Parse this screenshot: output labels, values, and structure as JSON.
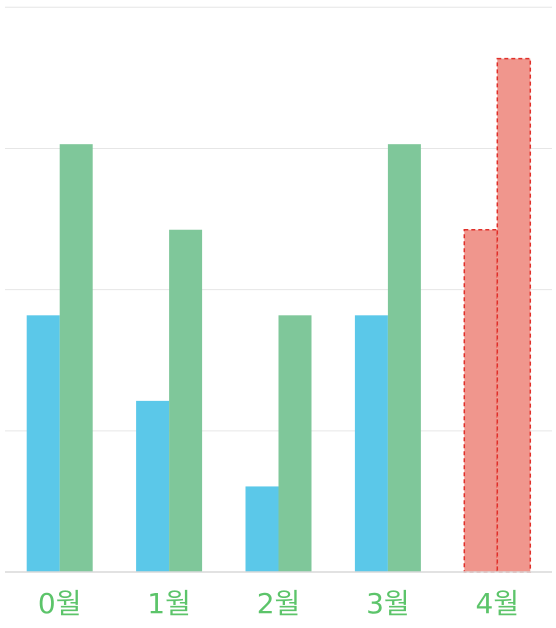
{
  "colors": {
    "series_a": "#5bc8e9",
    "series_b": "#7fc79a",
    "highlight_fill": "#f0968d",
    "highlight_stroke": "#e0302a",
    "grid": "#e6e6e6",
    "axis": "#d9d9d9",
    "label": "#5cc46a"
  },
  "chart_data": {
    "type": "bar",
    "categories": [
      "0월",
      "1월",
      "2월",
      "3월",
      "4월"
    ],
    "series": [
      {
        "values": [
          3,
          2,
          1,
          3,
          4
        ]
      },
      {
        "values": [
          5,
          4,
          3,
          5,
          6
        ]
      }
    ],
    "highlight_category": "4월",
    "ylim": [
      0,
      6.65
    ],
    "grid": true,
    "ytick_values": [
      1.65,
      3.3,
      4.95,
      6.6
    ],
    "title": "",
    "xlabel": "",
    "ylabel": ""
  }
}
